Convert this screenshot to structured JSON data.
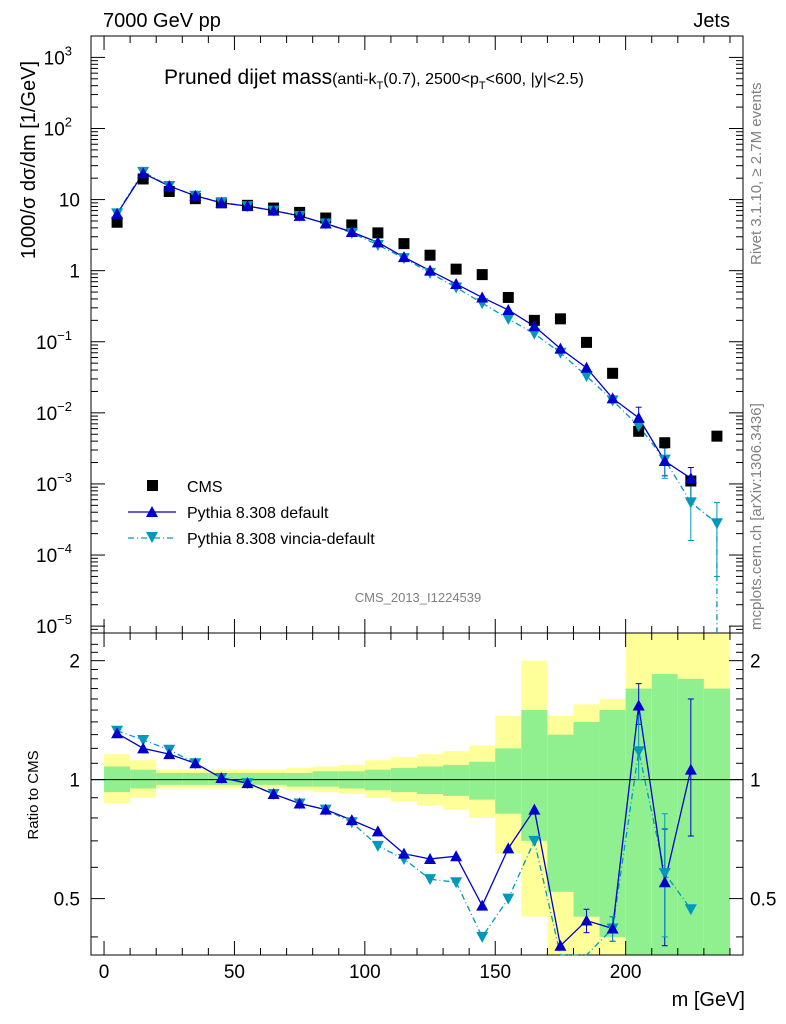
{
  "header": {
    "left": "7000 GeV pp",
    "right": "Jets"
  },
  "title": {
    "main": "Pruned dijet mass",
    "sub_prefix": "(anti-k",
    "sub_T1": "T",
    "sub_mid": "(0.7), 2500<p",
    "sub_T2": "T",
    "sub_suffix": "<600, |y|<2.5)"
  },
  "side": {
    "rivet": "Rivet 3.1.10, ≥ 2.7M events",
    "mcplots": "mcplots.cern.ch [arXiv:1306.3436]"
  },
  "analysis_id": "CMS_2013_I1224539",
  "ratio_ylabel": "Ratio to CMS",
  "colors": {
    "data": "#000000",
    "default": "#0000cc",
    "vincia": "#0099bb",
    "band_inner": "#90f090",
    "band_outer": "#ffff99"
  },
  "chart_data": [
    {
      "type": "scatter",
      "ylabel": "1000/σ dσ/dm [1/GeV]",
      "xlabel": "m [GeV]",
      "yscale": "log",
      "ylim": [
        8e-06,
        2000
      ],
      "xlim": [
        -5,
        245
      ],
      "legend_position": "lower-left",
      "legend": [
        "CMS",
        "Pythia 8.308 default",
        "Pythia 8.308 vincia-default"
      ],
      "x": [
        5,
        15,
        25,
        35,
        45,
        55,
        65,
        75,
        85,
        95,
        105,
        115,
        125,
        135,
        145,
        155,
        165,
        175,
        185,
        195,
        205,
        215,
        225,
        235
      ],
      "series": [
        {
          "name": "CMS",
          "values": [
            4.8,
            19.5,
            13,
            10.3,
            9.0,
            8.3,
            7.6,
            6.6,
            5.5,
            4.4,
            3.4,
            2.4,
            1.65,
            1.05,
            0.88,
            0.42,
            0.2,
            0.21,
            0.098,
            0.036,
            0.0055,
            0.0038,
            0.0011,
            0.0047
          ]
        },
        {
          "name": "Pythia 8.308 default",
          "values": [
            6.3,
            23.5,
            15.5,
            11.3,
            9.0,
            8.1,
            7.0,
            5.9,
            4.6,
            3.5,
            2.5,
            1.55,
            1.0,
            0.65,
            0.42,
            0.28,
            0.165,
            0.08,
            0.043,
            0.016,
            0.0085,
            0.0021,
            0.0012,
            null
          ]
        },
        {
          "name": "Pythia 8.308 vincia-default",
          "values": [
            6.4,
            24.5,
            15.5,
            11.3,
            9.1,
            8.1,
            7.0,
            5.9,
            4.6,
            3.4,
            2.3,
            1.5,
            0.93,
            0.58,
            0.35,
            0.21,
            0.13,
            0.07,
            0.033,
            0.015,
            0.0065,
            0.0022,
            0.00055,
            0.00028
          ]
        }
      ]
    },
    {
      "type": "line",
      "ylabel": "Ratio to CMS",
      "xlabel": "m [GeV]",
      "yscale": "log",
      "ylim": [
        0.36,
        2.35
      ],
      "xlim": [
        -5,
        245
      ],
      "x": [
        5,
        15,
        25,
        35,
        45,
        55,
        65,
        75,
        85,
        95,
        105,
        115,
        125,
        135,
        145,
        155,
        165,
        175,
        185,
        195,
        205,
        215,
        225
      ],
      "series": [
        {
          "name": "Pythia 8.308 default",
          "values": [
            1.31,
            1.2,
            1.16,
            1.1,
            1.01,
            0.98,
            0.92,
            0.87,
            0.84,
            0.79,
            0.74,
            0.65,
            0.63,
            0.64,
            0.48,
            0.67,
            0.84,
            0.38,
            0.44,
            0.42,
            1.54,
            0.55,
            1.06
          ]
        },
        {
          "name": "Pythia 8.308 vincia-default",
          "values": [
            1.33,
            1.26,
            1.19,
            1.1,
            1.01,
            0.98,
            0.92,
            0.87,
            0.84,
            0.78,
            0.68,
            0.63,
            0.56,
            0.55,
            0.4,
            0.5,
            0.7,
            0.33,
            0.34,
            0.42,
            1.18,
            0.58,
            0.47
          ]
        }
      ]
    }
  ]
}
